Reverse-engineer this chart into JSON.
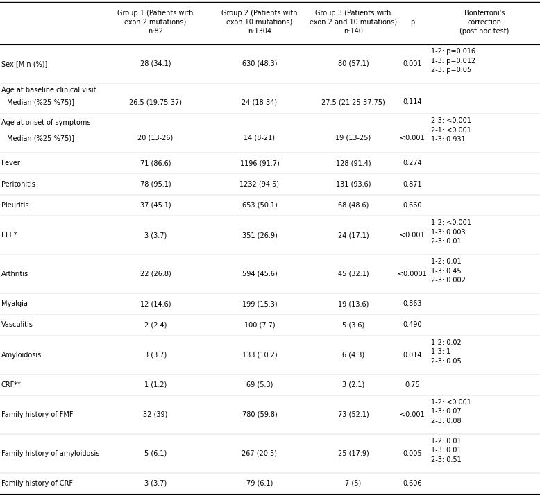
{
  "col_headers": [
    "",
    "Group 1 (Patients with\nexon 2 mutations)\nn:82",
    "Group 2 (Patients with\nexon 10 mutations)\nn:1304",
    "Group 3 (Patients with\nexon 2 and 10 mutations)\nn:140",
    "p",
    "Bonferroni's\ncorrection\n(post hoc test)"
  ],
  "rows": [
    {
      "label": "Sex [M n (%)]",
      "label2": "",
      "g1": "28 (34.1)",
      "g2": "630 (48.3)",
      "g3": "80 (57.1)",
      "p": "0.001",
      "bonf": [
        "1-2: p=0.016",
        "1-3: p=0.012",
        "2-3: p=0.05"
      ]
    },
    {
      "label": "Age at baseline clinical visit",
      "label2": "Median (%25-%75)]",
      "g1": "26.5 (19.75-37)",
      "g2": "24 (18-34)",
      "g3": "27.5 (21.25-37.75)",
      "p": "0.114",
      "bonf": []
    },
    {
      "label": "Age at onset of symptoms",
      "label2": "Median (%25-%75)]",
      "g1": "20 (13-26)",
      "g2": "14 (8-21)",
      "g3": "19 (13-25)",
      "p": "<0.001",
      "bonf": [
        "2-3: <0.001",
        "2-1: <0.001",
        "1-3: 0.931"
      ]
    },
    {
      "label": "Fever",
      "label2": "",
      "g1": "71 (86.6)",
      "g2": "1196 (91.7)",
      "g3": "128 (91.4)",
      "p": "0.274",
      "bonf": []
    },
    {
      "label": "Peritonitis",
      "label2": "",
      "g1": "78 (95.1)",
      "g2": "1232 (94.5)",
      "g3": "131 (93.6)",
      "p": "0.871",
      "bonf": []
    },
    {
      "label": "Pleuritis",
      "label2": "",
      "g1": "37 (45.1)",
      "g2": "653 (50.1)",
      "g3": "68 (48.6)",
      "p": "0.660",
      "bonf": []
    },
    {
      "label": "ELE*",
      "label2": "",
      "g1": "3 (3.7)",
      "g2": "351 (26.9)",
      "g3": "24 (17.1)",
      "p": "<0.001",
      "bonf": [
        "1-2: <0.001",
        "1-3: 0.003",
        "2-3: 0.01"
      ]
    },
    {
      "label": "Arthritis",
      "label2": "",
      "g1": "22 (26.8)",
      "g2": "594 (45.6)",
      "g3": "45 (32.1)",
      "p": "<0.0001",
      "bonf": [
        "1-2: 0.01",
        "1-3: 0.45",
        "2-3: 0.002"
      ]
    },
    {
      "label": "Myalgia",
      "label2": "",
      "g1": "12 (14.6)",
      "g2": "199 (15.3)",
      "g3": "19 (13.6)",
      "p": "0.863",
      "bonf": []
    },
    {
      "label": "Vasculitis",
      "label2": "",
      "g1": "2 (2.4)",
      "g2": "100 (7.7)",
      "g3": "5 (3.6)",
      "p": "0.490",
      "bonf": []
    },
    {
      "label": "Amyloidosis",
      "label2": "",
      "g1": "3 (3.7)",
      "g2": "133 (10.2)",
      "g3": "6 (4.3)",
      "p": "0.014",
      "bonf": [
        "1-2: 0.02",
        "1-3: 1",
        "2-3: 0.05"
      ]
    },
    {
      "label": "CRF**",
      "label2": "",
      "g1": "1 (1.2)",
      "g2": "69 (5.3)",
      "g3": "3 (2.1)",
      "p": "0.75",
      "bonf": []
    },
    {
      "label": "Family history of FMF",
      "label2": "",
      "g1": "32 (39)",
      "g2": "780 (59.8)",
      "g3": "73 (52.1)",
      "p": "<0.001",
      "bonf": [
        "1-2: <0.001",
        "1-3: 0.07",
        "2-3: 0.08"
      ]
    },
    {
      "label": "Family history of amyloidosis",
      "label2": "",
      "g1": "5 (6.1)",
      "g2": "267 (20.5)",
      "g3": "25 (17.9)",
      "p": "0.005",
      "bonf": [
        "1-2: 0.01",
        "1-3: 0.01",
        "2-3: 0.51"
      ]
    },
    {
      "label": "Family history of CRF",
      "label2": "",
      "g1": "3 (3.7)",
      "g2": "79 (6.1)",
      "g3": "7 (5)",
      "p": "0.606",
      "bonf": []
    }
  ],
  "bg_color": "#ffffff",
  "text_color": "#000000",
  "font_size": 7.0,
  "header_font_size": 7.0
}
